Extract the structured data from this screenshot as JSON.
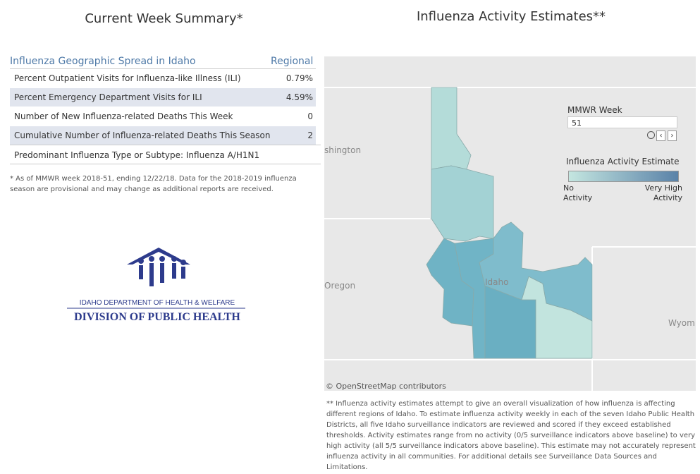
{
  "summary": {
    "title": "Current Week Summary*",
    "table": {
      "header": [
        "Influenza Geographic Spread in Idaho",
        "Regional"
      ],
      "rows": [
        [
          "Percent Outpatient Visits for Influenza-like Illness (ILI)",
          "0.79%"
        ],
        [
          "Percent Emergency Department Visits for ILI",
          "4.59%"
        ],
        [
          "Number of New Influenza-related Deaths This Week",
          "0"
        ],
        [
          "Cumulative Number of Influenza-related Deaths This Season",
          "2"
        ]
      ],
      "note": "Predominant Influenza Type or Subtype: Influenza A/H1N1"
    },
    "footnote": "* As of MMWR week 2018-51, ending 12/22/18. Data for the 2018-2019 influenza season are provisional and may change as additional reports are received.",
    "logo": {
      "line1": "IDAHO DEPARTMENT OF HEALTH & WELFARE",
      "line2": "DIVISION OF PUBLIC HEALTH"
    }
  },
  "map": {
    "title": "Influenza Activity Estimates**",
    "place_labels": [
      "shington",
      "Oregon",
      "Idaho",
      "Wyom"
    ],
    "mmwr_week": {
      "label": "MMWR Week",
      "value": "51"
    },
    "legend": {
      "title": "Influenza Activity Estimate",
      "low": "No Activity",
      "high": "Very High Activity"
    },
    "attribution": "© OpenStreetMap contributors",
    "footnote": "** Influenza activity estimates attempt to give an overall visualization of how influenza is affecting different regions of Idaho. To estimate influenza activity weekly in each of the seven Idaho Public Health Districts, all five Idaho surveillance indicators are reviewed and scored if they exceed established thresholds. Activity estimates range from no activity (0/5 surveillance indicators above baseline) to very high activity (all 5/5 surveillance indicators above baseline). This estimate may not accurately represent influenza activity in all communities. For additional details see Surveillance Data Sources and Limitations."
  }
}
